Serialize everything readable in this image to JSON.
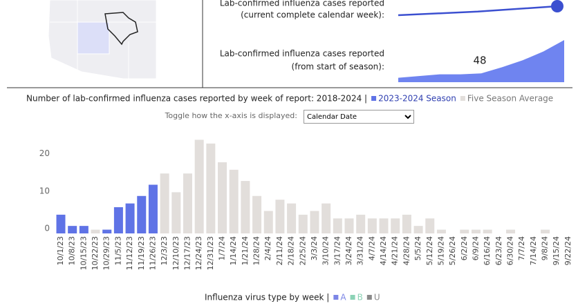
{
  "chart_data": [
    {
      "type": "bar",
      "title": "Number of lab-confirmed influenza cases reported by week of report: 2018-2024 |",
      "categories": [
        "10/1/23",
        "10/8/23",
        "10/15/23",
        "10/22/23",
        "10/29/23",
        "11/5/23",
        "11/12/23",
        "11/19/23",
        "11/26/23",
        "12/3/23",
        "12/10/23",
        "12/17/23",
        "12/24/23",
        "12/31/23",
        "1/7/24",
        "1/14/24",
        "1/21/24",
        "1/28/24",
        "2/4/24",
        "2/11/24",
        "2/18/24",
        "2/25/24",
        "3/3/24",
        "3/10/24",
        "3/17/24",
        "3/24/24",
        "3/31/24",
        "4/7/24",
        "4/14/24",
        "4/21/24",
        "4/28/24",
        "5/5/24",
        "5/12/24",
        "5/19/24",
        "5/26/24",
        "6/2/24",
        "6/9/24",
        "6/16/24",
        "6/23/24",
        "6/30/24",
        "7/7/24",
        "7/14/24",
        "9/8/24",
        "9/15/24",
        "9/22/24"
      ],
      "series": [
        {
          "name": "Five Season Average",
          "color": "#e2dedb",
          "values": [
            1,
            1,
            1,
            1,
            1,
            2,
            3,
            4,
            6,
            16,
            11,
            16,
            25,
            24,
            19,
            17,
            14,
            10,
            6,
            9,
            8,
            5,
            6,
            8,
            4,
            4,
            5,
            4,
            4,
            4,
            5,
            2,
            4,
            1,
            0,
            1,
            1,
            1,
            0,
            1,
            0,
            0,
            1,
            0,
            0
          ]
        },
        {
          "name": "2023-2024 Season",
          "color": "#5f73e6",
          "values": [
            5,
            2,
            2,
            null,
            1,
            7,
            8,
            10,
            13,
            null,
            null,
            null,
            null,
            null,
            null,
            null,
            null,
            null,
            null,
            null,
            null,
            null,
            null,
            null,
            null,
            null,
            null,
            null,
            null,
            null,
            null,
            null,
            null,
            null,
            null,
            null,
            null,
            null,
            null,
            null,
            null,
            null,
            null,
            null,
            null
          ]
        }
      ],
      "ylim": [
        0,
        26
      ],
      "yticks": [
        0,
        10,
        20
      ]
    },
    {
      "type": "line",
      "label": [
        "Lab-confirmed influenza cases reported",
        "(current complete calendar week):"
      ],
      "color": "#3b4fd0",
      "values": [
        8,
        10,
        13
      ]
    },
    {
      "type": "area",
      "label": [
        "Lab-confirmed influenza cases reported",
        "(from start of season):"
      ],
      "color": "#6f84f0",
      "values": [
        5,
        7,
        9,
        9,
        10,
        17,
        25,
        35,
        48
      ]
    }
  ],
  "toggle": {
    "label": "Toggle how the x-axis is displayed:",
    "selected": "Calendar Date"
  },
  "virus_type_legend": {
    "title": "Influenza virus type by week |",
    "items": [
      {
        "name": "A",
        "color": "#7c86e6"
      },
      {
        "name": "B",
        "color": "#8cd3b6"
      },
      {
        "name": "U",
        "color": "#8a8a8a"
      }
    ]
  }
}
